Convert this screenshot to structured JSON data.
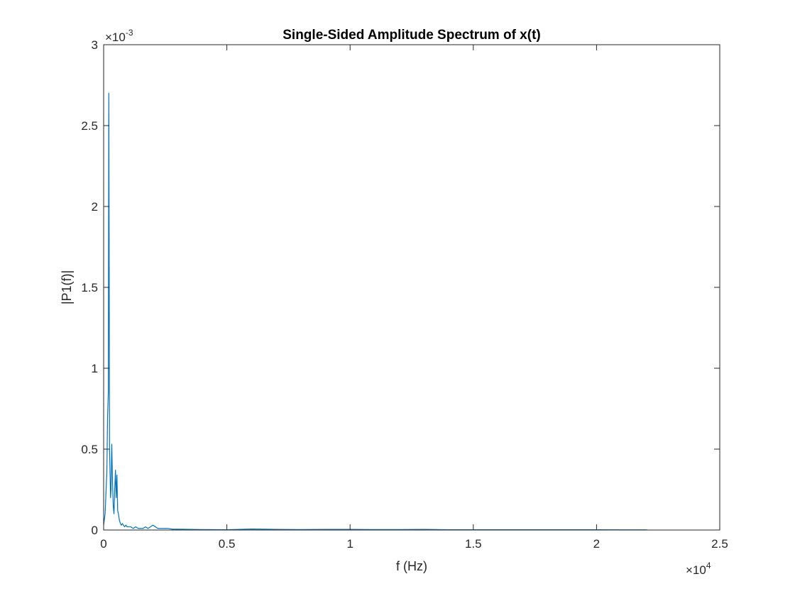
{
  "chart_data": {
    "type": "line",
    "title": "Single-Sided Amplitude Spectrum of x(t)",
    "xlabel": "f (Hz)",
    "ylabel": "|P1(f)|",
    "xlim": [
      0,
      25000
    ],
    "ylim": [
      0,
      0.003
    ],
    "x_ticks": [
      0,
      5000,
      10000,
      15000,
      20000,
      25000
    ],
    "x_tick_labels": [
      "0",
      "0.5",
      "1",
      "1.5",
      "2",
      "2.5"
    ],
    "x_exponent": {
      "base": "×10",
      "power": "4"
    },
    "y_ticks": [
      0,
      0.0005,
      0.001,
      0.0015,
      0.002,
      0.0025,
      0.003
    ],
    "y_tick_labels": [
      "0",
      "0.5",
      "1",
      "1.5",
      "2",
      "2.5",
      "3"
    ],
    "y_exponent": {
      "base": "×10",
      "power": "-3"
    },
    "grid": false,
    "box": true,
    "series_color": "#0072BD",
    "series": [
      {
        "x": [
          0,
          60,
          100,
          130,
          160,
          190,
          210,
          225,
          240,
          260,
          280,
          300,
          330,
          360,
          390,
          420,
          450,
          480,
          510,
          540,
          570,
          600,
          640,
          680,
          720,
          760,
          800,
          850,
          900,
          950,
          1000,
          1100,
          1200,
          1300,
          1400,
          1500,
          1600,
          1700,
          1800,
          1900,
          2000,
          2100,
          2200,
          2400,
          2600,
          2800,
          3000,
          3500,
          4000,
          5000,
          6000,
          6500,
          7000,
          8000,
          9000,
          10000,
          11000,
          12000,
          13000,
          14000,
          15000,
          16000,
          17000,
          18000,
          19000,
          20000,
          21000,
          22050
        ],
        "y": [
          3e-05,
          0.0001,
          0.00025,
          0.00035,
          0.0007,
          0.00085,
          0.0027,
          0.00165,
          0.0005,
          0.00035,
          0.0002,
          0.00025,
          0.00053,
          0.0003,
          0.00015,
          0.0001,
          0.00025,
          0.00037,
          0.0002,
          0.00034,
          0.00012,
          0.0001,
          6e-05,
          4e-05,
          3e-05,
          4e-05,
          3e-05,
          2e-05,
          3e-05,
          2e-05,
          2e-05,
          2e-05,
          1e-05,
          2e-05,
          1e-05,
          1e-05,
          1e-05,
          2e-05,
          1e-05,
          2e-05,
          3e-05,
          2e-05,
          1e-05,
          1e-05,
          1e-05,
          5e-06,
          5e-06,
          4e-06,
          3e-06,
          2e-06,
          6e-06,
          5e-06,
          4e-06,
          3e-06,
          4e-06,
          4e-06,
          3e-06,
          3e-06,
          4e-06,
          2e-06,
          2e-06,
          2e-06,
          2e-06,
          2e-06,
          2e-06,
          2e-06,
          1e-06,
          1e-06
        ]
      }
    ]
  }
}
